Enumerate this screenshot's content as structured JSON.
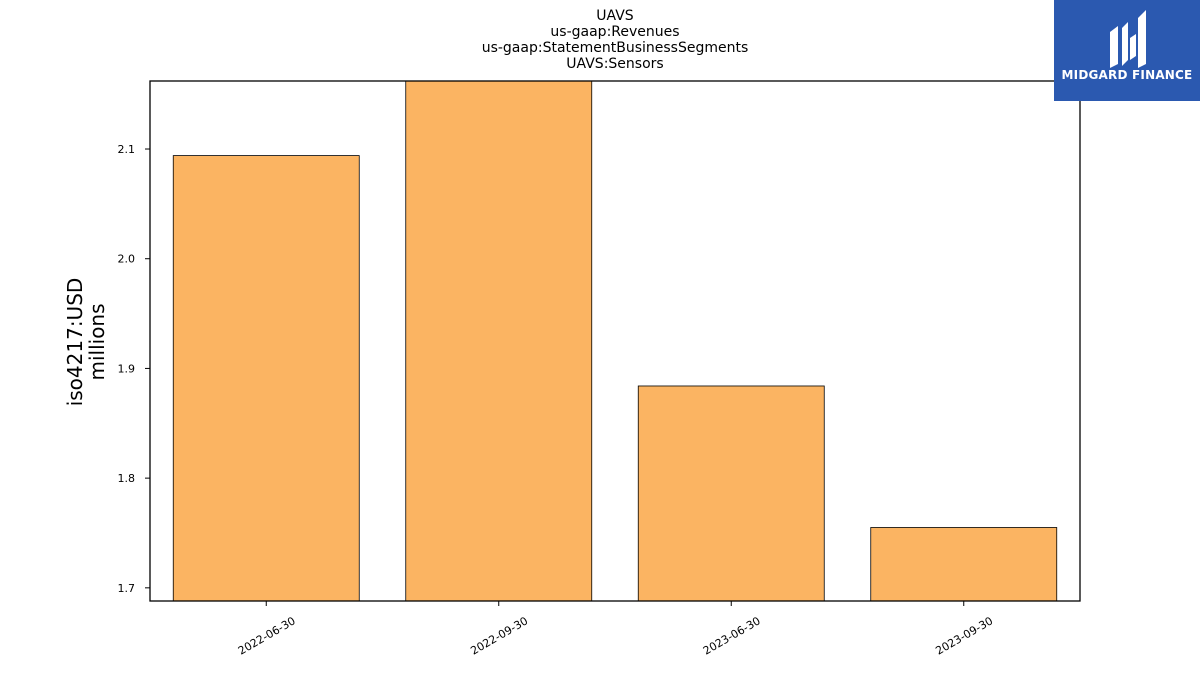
{
  "logo": {
    "text": "MIDGARD FINANCE"
  },
  "chart_data": {
    "type": "bar",
    "title_lines": [
      "UAVS",
      "us-gaap:Revenues",
      "us-gaap:StatementBusinessSegments",
      "UAVS:Sensors"
    ],
    "ylabel_lines": [
      "iso4217:USD",
      "millions"
    ],
    "xlabel": "",
    "categories": [
      "2022-06-30",
      "2022-09-30",
      "2023-06-30",
      "2023-09-30"
    ],
    "values": [
      2.094,
      2.162,
      1.884,
      1.755
    ],
    "ylim": [
      1.688,
      2.162
    ],
    "yticks": [
      1.7,
      1.8,
      1.9,
      2.0,
      2.1
    ],
    "ytick_labels": [
      "1.7",
      "1.8",
      "1.9",
      "2.0",
      "2.1"
    ],
    "bar_color": "#fbb462",
    "bar_edge": "#000000",
    "grid": false,
    "legend": "none"
  }
}
